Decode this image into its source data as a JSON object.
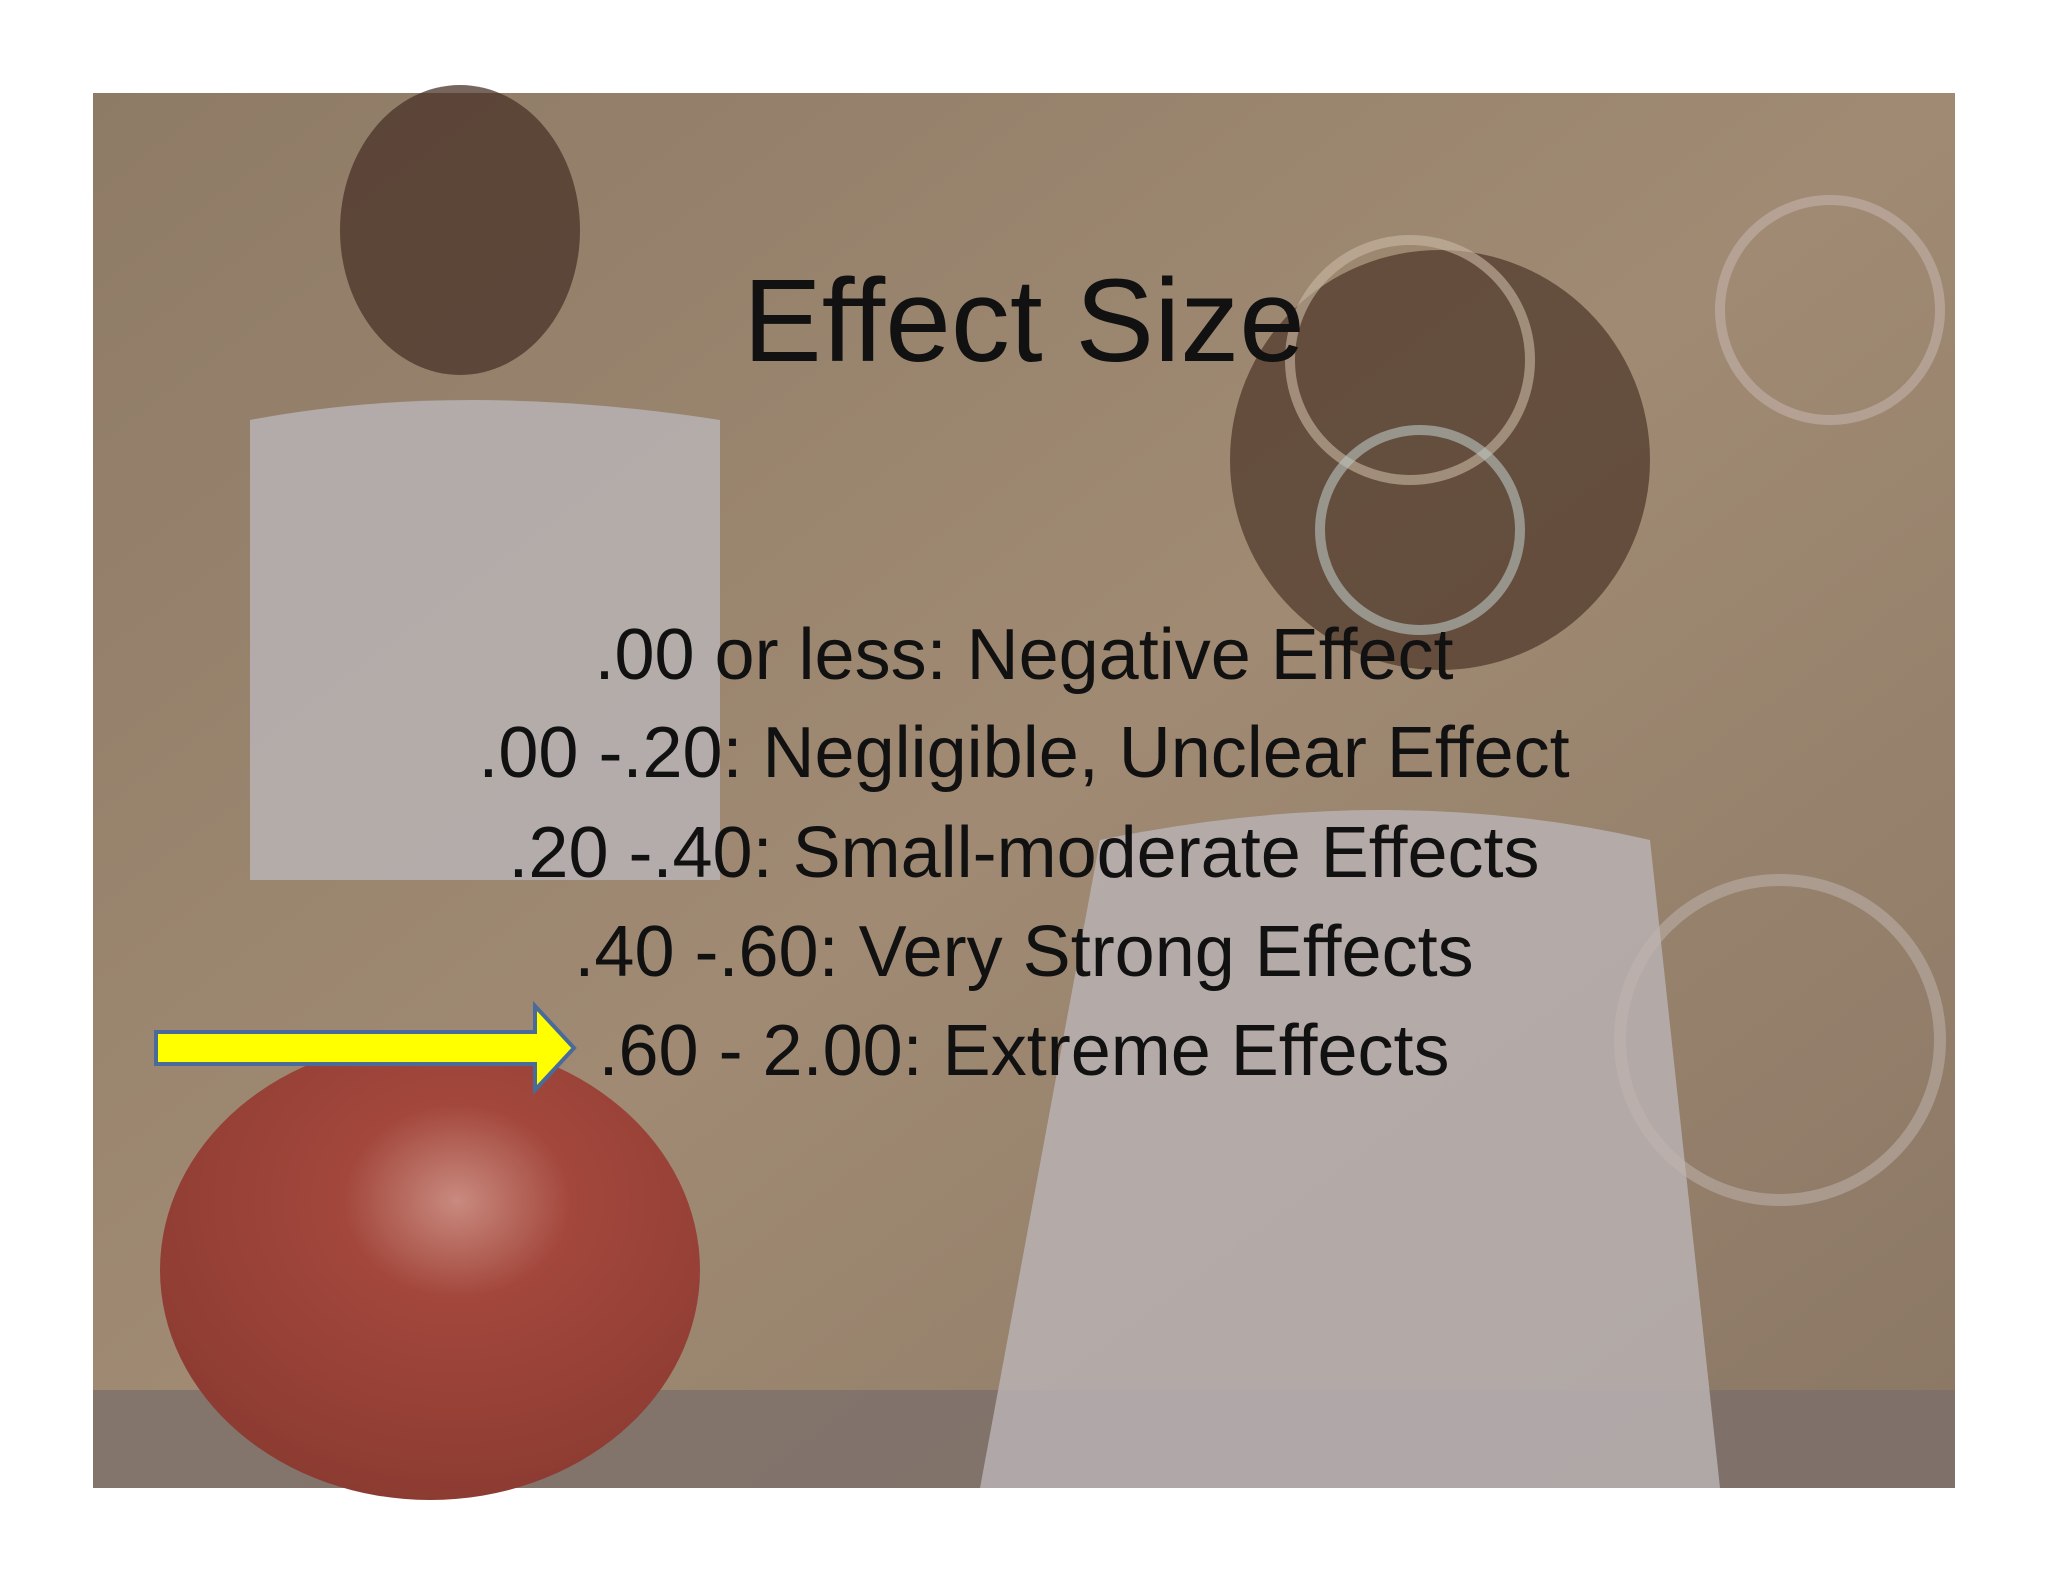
{
  "slide": {
    "title": "Effect Size",
    "items": [
      ".00 or less:  Negative Effect",
      ".00 -.20: Negligible, Unclear Effect",
      ".20 -.40:  Small-moderate Effects",
      ".40 -.60:  Very Strong Effects",
      ".60 - 2.00:  Extreme Effects"
    ]
  }
}
